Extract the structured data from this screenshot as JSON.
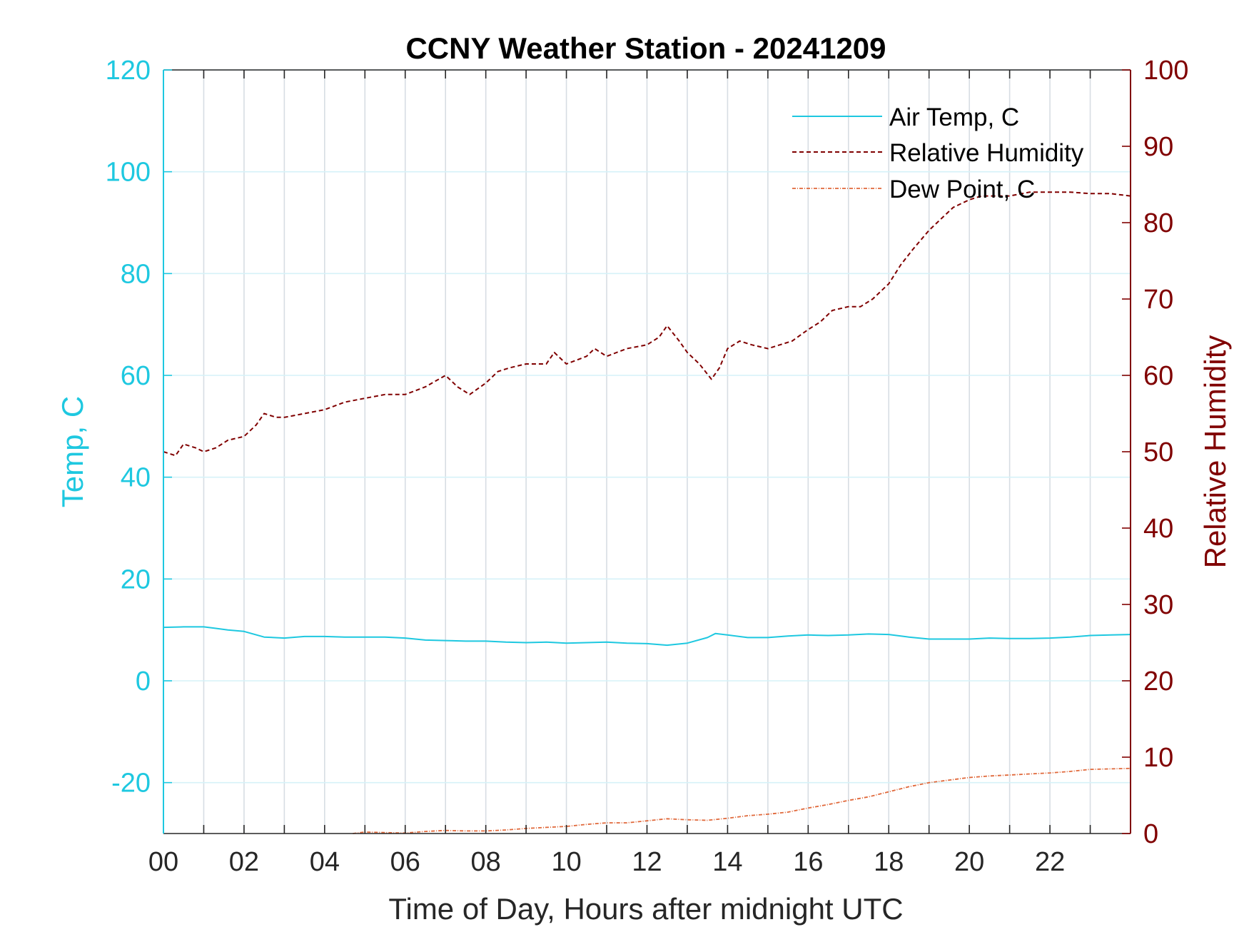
{
  "chart_data": {
    "type": "line",
    "title": "CCNY Weather Station - 20241209",
    "xlabel": "Time of Day, Hours after midnight UTC",
    "ylabel_left": "Temp, C",
    "ylabel_right": "Relative Humidity",
    "xlim": [
      0,
      24
    ],
    "ylim_left": [
      -30,
      120
    ],
    "ylim_right": [
      0,
      100
    ],
    "x_ticks": [
      0,
      2,
      4,
      6,
      8,
      10,
      12,
      14,
      16,
      18,
      20,
      22
    ],
    "x_tick_labels": [
      "00",
      "02",
      "04",
      "06",
      "08",
      "10",
      "12",
      "14",
      "16",
      "18",
      "20",
      "22"
    ],
    "y_left_ticks": [
      -20,
      0,
      20,
      40,
      60,
      80,
      100,
      120
    ],
    "y_left_tick_labels": [
      "-20",
      "0",
      "20",
      "40",
      "60",
      "80",
      "100",
      "120"
    ],
    "y_right_ticks": [
      0,
      10,
      20,
      30,
      40,
      50,
      60,
      70,
      80,
      90,
      100
    ],
    "y_right_tick_labels": [
      "0",
      "10",
      "20",
      "30",
      "40",
      "50",
      "60",
      "70",
      "80",
      "90",
      "100"
    ],
    "grid": true,
    "legend_position": "top-right",
    "colors": {
      "left_axis": "#1ec8e0",
      "right_axis": "#800000",
      "air_temp": "#1ec8e0",
      "relative_humidity": "#800000",
      "dew_point": "#e0683a",
      "grid_vertical": "#d7dde3",
      "grid_horizontal": "#d6f2f8"
    },
    "series": [
      {
        "name": "Air Temp, C",
        "axis": "left",
        "style": "solid",
        "x": [
          0,
          0.5,
          1,
          1.3,
          1.6,
          2,
          2.5,
          3,
          3.5,
          4,
          4.5,
          5,
          5.5,
          6,
          6.5,
          7,
          7.5,
          8,
          8.5,
          9,
          9.5,
          10,
          10.5,
          11,
          11.5,
          12,
          12.5,
          13,
          13.5,
          13.7,
          14,
          14.5,
          15,
          15.5,
          16,
          16.5,
          17,
          17.5,
          18,
          18.5,
          19,
          19.5,
          20,
          20.5,
          21,
          21.5,
          22,
          22.5,
          23,
          23.5,
          24
        ],
        "y": [
          10.5,
          10.6,
          10.6,
          10.3,
          10.0,
          9.7,
          8.6,
          8.4,
          8.7,
          8.7,
          8.6,
          8.6,
          8.6,
          8.4,
          8.0,
          7.9,
          7.8,
          7.8,
          7.6,
          7.5,
          7.6,
          7.4,
          7.5,
          7.6,
          7.4,
          7.3,
          7.0,
          7.4,
          8.5,
          9.3,
          9.0,
          8.5,
          8.5,
          8.8,
          9.0,
          8.9,
          9.0,
          9.2,
          9.1,
          8.6,
          8.2,
          8.2,
          8.2,
          8.4,
          8.3,
          8.3,
          8.4,
          8.6,
          8.9,
          9.0,
          9.1
        ]
      },
      {
        "name": "Relative Humidity",
        "axis": "right",
        "style": "dashed",
        "x": [
          0,
          0.3,
          0.5,
          0.8,
          1,
          1.3,
          1.6,
          2,
          2.3,
          2.5,
          2.8,
          3,
          3.5,
          4,
          4.5,
          5,
          5.5,
          6,
          6.5,
          7,
          7.3,
          7.6,
          8,
          8.3,
          8.6,
          9,
          9.5,
          9.7,
          10,
          10.5,
          10.7,
          11,
          11.5,
          12,
          12.3,
          12.5,
          12.8,
          13,
          13.3,
          13.6,
          13.8,
          14,
          14.3,
          14.6,
          15,
          15.3,
          15.6,
          16,
          16.3,
          16.6,
          17,
          17.3,
          17.6,
          18,
          18.3,
          18.6,
          19,
          19.3,
          19.6,
          20,
          20.3,
          20.6,
          21,
          21.5,
          22,
          22.5,
          23,
          23.5,
          24
        ],
        "y": [
          50,
          49.5,
          51,
          50.5,
          50,
          50.5,
          51.5,
          52,
          53.5,
          55,
          54.5,
          54.5,
          55,
          55.5,
          56.5,
          57,
          57.5,
          57.5,
          58.5,
          60,
          58.5,
          57.5,
          59,
          60.5,
          61,
          61.5,
          61.5,
          63,
          61.5,
          62.5,
          63.5,
          62.5,
          63.5,
          64,
          65,
          66.5,
          64.5,
          63,
          61.5,
          59.5,
          61,
          63.5,
          64.5,
          64,
          63.5,
          64,
          64.5,
          66,
          67,
          68.5,
          69,
          69,
          70,
          72,
          74.5,
          76.5,
          79,
          80.5,
          82,
          83,
          83.5,
          83.5,
          83.5,
          84,
          84,
          84,
          83.8,
          83.8,
          83.5
        ]
      },
      {
        "name": "Dew Point, C",
        "axis": "left",
        "style": "dash-dot",
        "x": [
          4.7,
          5,
          5.5,
          6,
          6.5,
          7,
          7.5,
          8,
          8.5,
          9,
          9.5,
          10,
          10.5,
          11,
          11.5,
          12,
          12.5,
          13,
          13.5,
          14,
          14.5,
          15,
          15.5,
          16,
          16.5,
          17,
          17.5,
          18,
          18.5,
          19,
          19.5,
          20,
          20.5,
          21,
          21.5,
          22,
          22.5,
          23,
          23.5,
          24
        ],
        "y": [
          -30,
          -29.7,
          -29.8,
          -29.9,
          -29.6,
          -29.4,
          -29.5,
          -29.5,
          -29.3,
          -29.0,
          -28.8,
          -28.6,
          -28.2,
          -27.9,
          -27.9,
          -27.5,
          -27.1,
          -27.3,
          -27.4,
          -27.0,
          -26.5,
          -26.2,
          -25.8,
          -25.0,
          -24.3,
          -23.5,
          -22.8,
          -21.8,
          -20.8,
          -20.0,
          -19.5,
          -19.0,
          -18.7,
          -18.5,
          -18.3,
          -18.1,
          -17.8,
          -17.4,
          -17.3,
          -17.2
        ]
      }
    ]
  }
}
